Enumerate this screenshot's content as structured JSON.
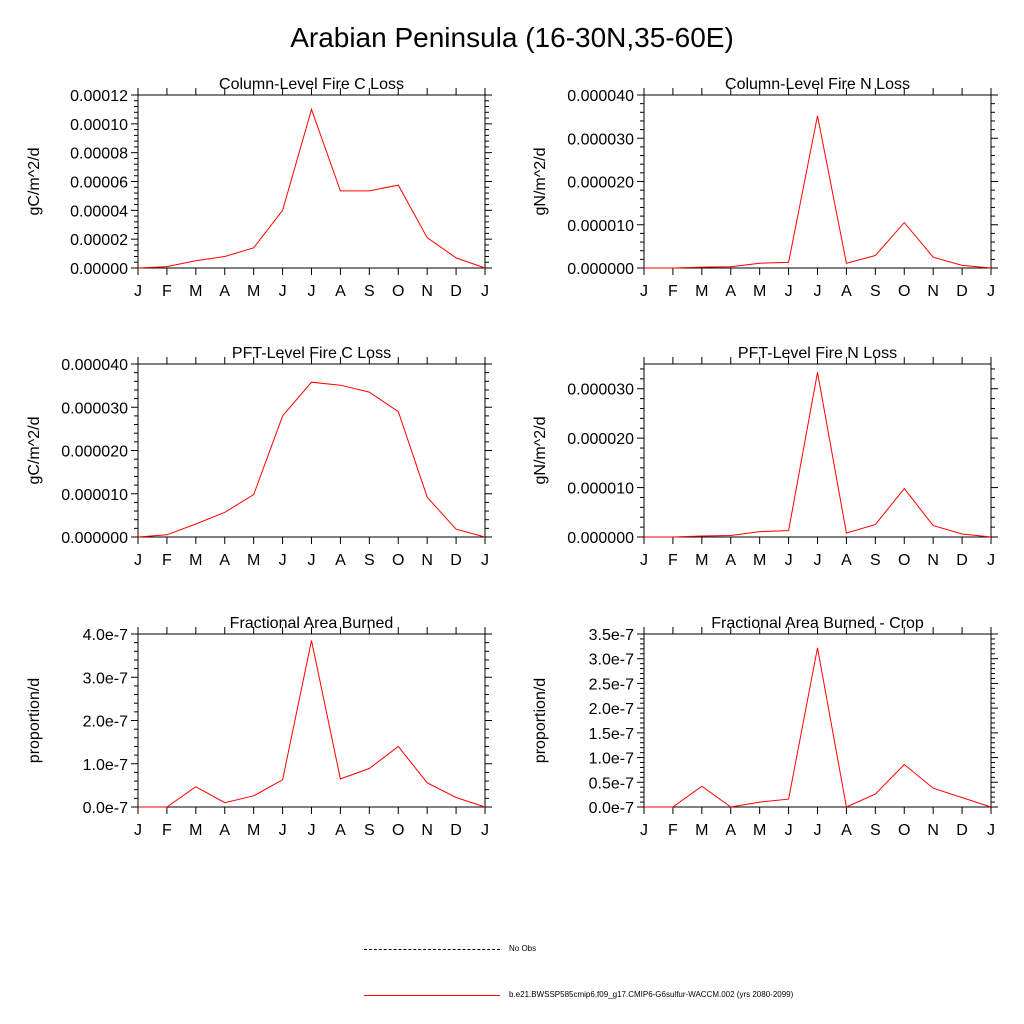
{
  "page_title": "Arabian Peninsula (16-30N,35-60E)",
  "colors": {
    "series": "#ff0000",
    "axis": "#000000"
  },
  "legend": {
    "obs_label": "No Obs",
    "model_label": "b.e21.BWSSP585cmip6.f09_g17.CMIP6-G6sulfur-WACCM.002 (yrs 2080-2099)"
  },
  "chart_data": [
    {
      "type": "line",
      "title": "Column-Level Fire C Loss",
      "ylabel": "gC/m^2/d",
      "x": [
        "J",
        "F",
        "M",
        "A",
        "M",
        "J",
        "J",
        "A",
        "S",
        "O",
        "N",
        "D",
        "J"
      ],
      "ylim": [
        0,
        0.00012
      ],
      "yticks": [
        "0.00000",
        "0.00002",
        "0.00004",
        "0.00006",
        "0.00008",
        "0.00010",
        "0.00012"
      ],
      "series": [
        {
          "values": [
            0.0,
            1e-06,
            5e-06,
            8e-06,
            1.4e-05,
            4e-05,
            0.00011,
            5.35e-05,
            5.35e-05,
            5.75e-05,
            2.1e-05,
            7e-06,
            0.0
          ]
        }
      ]
    },
    {
      "type": "line",
      "title": "Column-Level Fire N Loss",
      "ylabel": "gN/m^2/d",
      "x": [
        "J",
        "F",
        "M",
        "A",
        "M",
        "J",
        "J",
        "A",
        "S",
        "O",
        "N",
        "D",
        "J"
      ],
      "ylim": [
        0,
        4e-05
      ],
      "yticks": [
        "0.000000",
        "0.000010",
        "0.000020",
        "0.000030",
        "0.000040"
      ],
      "series": [
        {
          "values": [
            0.0,
            0.0,
            2e-07,
            3e-07,
            1.1e-06,
            1.3e-06,
            3.52e-05,
            1.1e-06,
            2.9e-06,
            1.05e-05,
            2.5e-06,
            6e-07,
            0.0
          ]
        }
      ]
    },
    {
      "type": "line",
      "title": "PFT-Level Fire C Loss",
      "ylabel": "gC/m^2/d",
      "x": [
        "J",
        "F",
        "M",
        "A",
        "M",
        "J",
        "J",
        "A",
        "S",
        "O",
        "N",
        "D",
        "J"
      ],
      "ylim": [
        0,
        4e-05
      ],
      "yticks": [
        "0.000000",
        "0.000010",
        "0.000020",
        "0.000030",
        "0.000040"
      ],
      "series": [
        {
          "values": [
            0.0,
            5e-07,
            3e-06,
            5.7e-06,
            9.8e-06,
            2.8e-05,
            3.58e-05,
            3.51e-05,
            3.35e-05,
            2.9e-05,
            9.2e-06,
            1.8e-06,
            0.0
          ]
        }
      ]
    },
    {
      "type": "line",
      "title": "PFT-Level Fire N Loss",
      "ylabel": "gN/m^2/d",
      "x": [
        "J",
        "F",
        "M",
        "A",
        "M",
        "J",
        "J",
        "A",
        "S",
        "O",
        "N",
        "D",
        "J"
      ],
      "ylim": [
        0,
        3.5e-05
      ],
      "yticks": [
        "0.000000",
        "0.000010",
        "0.000020",
        "0.000030"
      ],
      "ytick_values": [
        0,
        1e-05,
        2e-05,
        3e-05
      ],
      "series": [
        {
          "values": [
            0.0,
            0.0,
            2e-07,
            3e-07,
            1.1e-06,
            1.3e-06,
            3.33e-05,
            8e-07,
            2.5e-06,
            9.8e-06,
            2.3e-06,
            6e-07,
            0.0
          ]
        }
      ]
    },
    {
      "type": "line",
      "title": "Fractional Area Burned",
      "ylabel": "proportion/d",
      "x": [
        "J",
        "F",
        "M",
        "A",
        "M",
        "J",
        "J",
        "A",
        "S",
        "O",
        "N",
        "D",
        "J"
      ],
      "ylim": [
        0,
        4e-07
      ],
      "yticks": [
        "0.0e-7",
        "1.0e-7",
        "2.0e-7",
        "3.0e-7",
        "4.0e-7"
      ],
      "series": [
        {
          "values": [
            0.0,
            0.0,
            4.7e-08,
            1e-08,
            2.6e-08,
            6.3e-08,
            3.85e-07,
            6.5e-08,
            8.9e-08,
            1.4e-07,
            5.6e-08,
            2.2e-08,
            0.0
          ]
        }
      ]
    },
    {
      "type": "line",
      "title": "Fractional Area Burned - Crop",
      "ylabel": "proportion/d",
      "x": [
        "J",
        "F",
        "M",
        "A",
        "M",
        "J",
        "J",
        "A",
        "S",
        "O",
        "N",
        "D",
        "J"
      ],
      "ylim": [
        0,
        3.5e-07
      ],
      "yticks": [
        "0.0e-7",
        "0.5e-7",
        "1.0e-7",
        "1.5e-7",
        "2.0e-7",
        "2.5e-7",
        "3.0e-7",
        "3.5e-7"
      ],
      "series": [
        {
          "values": [
            0.0,
            0.0,
            4.2e-08,
            0.0,
            1e-08,
            1.6e-08,
            3.22e-07,
            0.0,
            2.6e-08,
            8.6e-08,
            3.8e-08,
            1.9e-08,
            0.0
          ]
        }
      ]
    }
  ]
}
